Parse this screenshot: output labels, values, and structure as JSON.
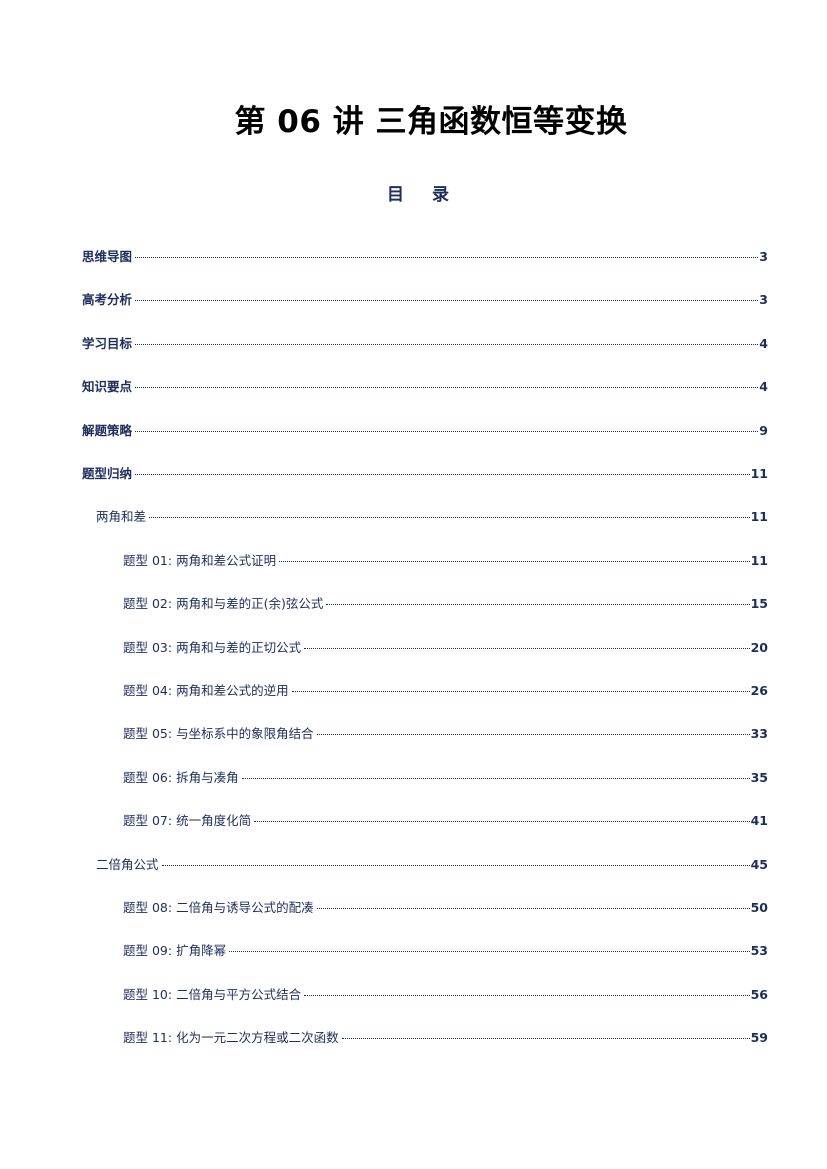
{
  "title": "第 06 讲  三角函数恒等变换",
  "toc_heading": "目 录",
  "toc": [
    {
      "label": "思维导图",
      "page": "3",
      "level": 0
    },
    {
      "label": "高考分析",
      "page": "3",
      "level": 0
    },
    {
      "label": "学习目标",
      "page": "4",
      "level": 0
    },
    {
      "label": "知识要点",
      "page": "4",
      "level": 0
    },
    {
      "label": "解题策略",
      "page": "9",
      "level": 0
    },
    {
      "label": "题型归纳",
      "page": "11",
      "level": 0
    },
    {
      "label": "两角和差",
      "page": "11",
      "level": 1
    },
    {
      "label": "题型 01:  两角和差公式证明",
      "page": "11",
      "level": 2
    },
    {
      "label": "题型 02:  两角和与差的正(余)弦公式",
      "page": "15",
      "level": 2
    },
    {
      "label": "题型 03:  两角和与差的正切公式",
      "page": "20",
      "level": 2
    },
    {
      "label": "题型 04:  两角和差公式的逆用",
      "page": "26",
      "level": 2
    },
    {
      "label": "题型 05:  与坐标系中的象限角结合",
      "page": "33",
      "level": 2
    },
    {
      "label": "题型 06:  拆角与凑角",
      "page": "35",
      "level": 2
    },
    {
      "label": "题型 07:  统一角度化简",
      "page": "41",
      "level": 2
    },
    {
      "label": "二倍角公式",
      "page": "45",
      "level": 1
    },
    {
      "label": "题型 08:  二倍角与诱导公式的配凑",
      "page": "50",
      "level": 2
    },
    {
      "label": "题型 09:  扩角降幂",
      "page": "53",
      "level": 2
    },
    {
      "label": "题型 10:  二倍角与平方公式结合",
      "page": "56",
      "level": 2
    },
    {
      "label": "题型 11:  化为一元二次方程或二次函数",
      "page": "59",
      "level": 2
    }
  ]
}
